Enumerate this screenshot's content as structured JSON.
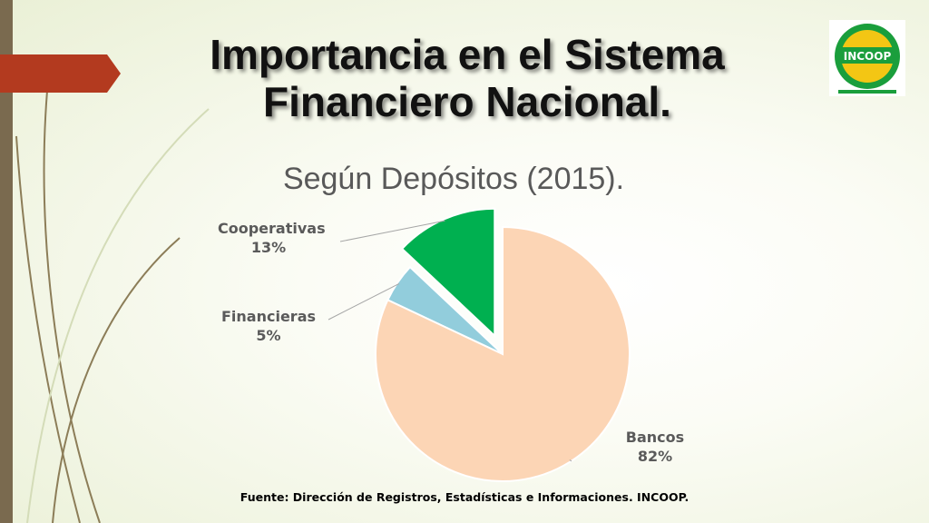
{
  "title_line1": "Importancia en el Sistema",
  "title_line2": "Financiero Nacional.",
  "logo": {
    "text": "INCOOP",
    "colors": [
      "#1a9e3c",
      "#f3c614",
      "#d42a2a"
    ]
  },
  "chart_data": {
    "type": "pie",
    "title": "Según Depósitos (2015).",
    "slices": [
      {
        "label": "Cooperativas",
        "value": 13,
        "display": "13%",
        "color": "#00b050",
        "exploded": true
      },
      {
        "label": "Financieras",
        "value": 5,
        "display": "5%",
        "color": "#92cddc",
        "exploded": false
      },
      {
        "label": "Bancos",
        "value": 82,
        "display": "82%",
        "color": "#fcd5b5",
        "exploded": false
      }
    ]
  },
  "source": "Fuente: Dirección de Registros, Estadísticas e Informaciones. INCOOP."
}
